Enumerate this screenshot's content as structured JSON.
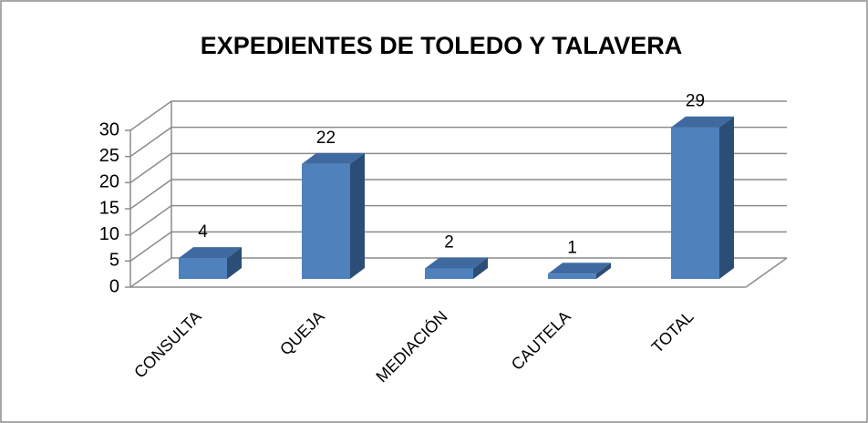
{
  "chart_data": {
    "type": "bar3d",
    "title": "EXPEDIENTES DE TOLEDO Y TALAVERA",
    "categories": [
      "CONSULTA",
      "QUEJA",
      "MEDIACIÓN",
      "CAUTELA",
      "TOTAL"
    ],
    "values": [
      4,
      22,
      2,
      1,
      29
    ],
    "color": "#4f81bd",
    "ylim": [
      0,
      30
    ],
    "yticks": [
      0,
      5,
      10,
      15,
      20,
      25,
      30
    ],
    "grid": true
  }
}
